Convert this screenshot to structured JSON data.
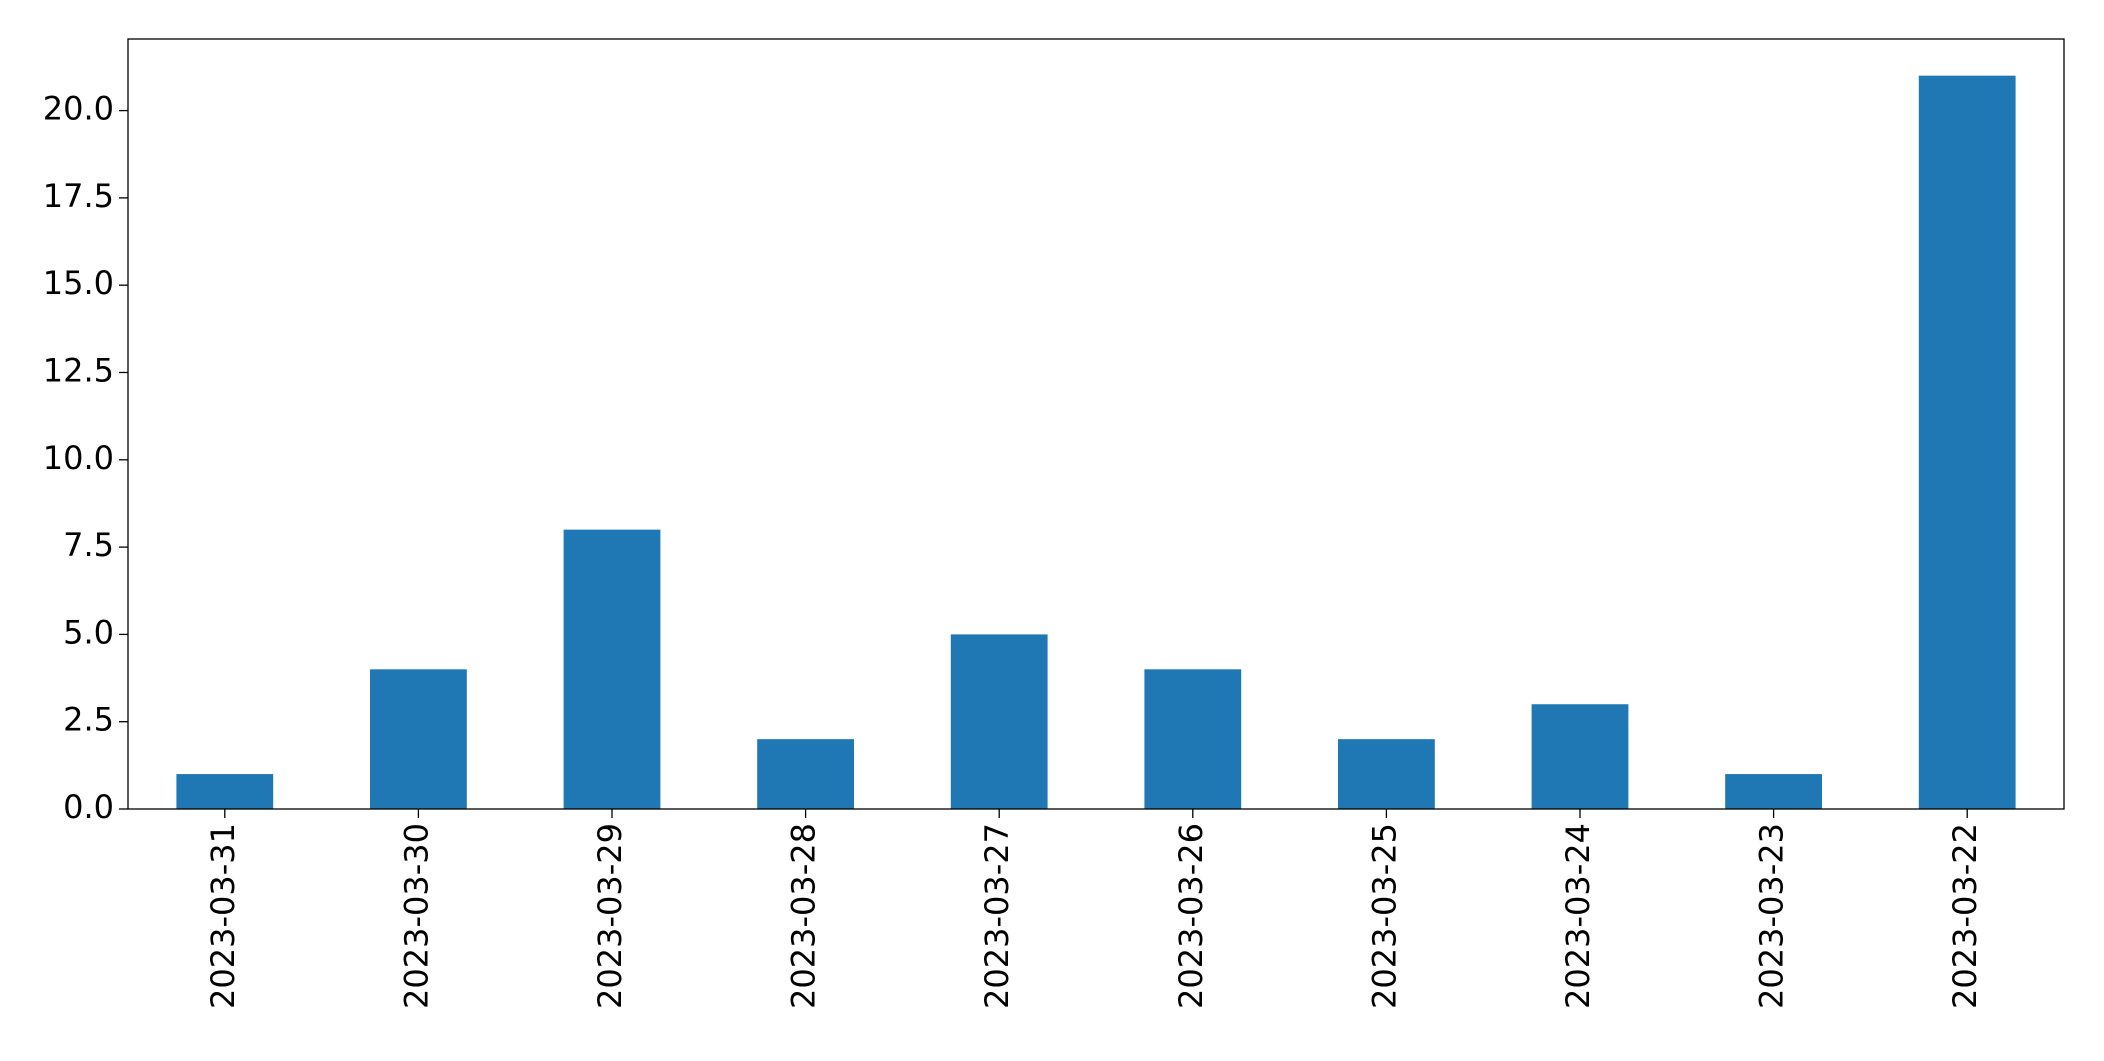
{
  "chart_data": {
    "type": "bar",
    "categories": [
      "2023-03-31",
      "2023-03-30",
      "2023-03-29",
      "2023-03-28",
      "2023-03-27",
      "2023-03-26",
      "2023-03-25",
      "2023-03-24",
      "2023-03-23",
      "2023-03-22"
    ],
    "values": [
      1,
      4,
      8,
      2,
      5,
      4,
      2,
      3,
      1,
      21
    ],
    "color": "#1f77b4",
    "ylim": [
      0,
      22.05
    ],
    "yticks": [
      {
        "value": 0,
        "label": "0.0"
      },
      2.5,
      {
        "value": 5,
        "label": "5.0"
      },
      7.5,
      {
        "value": 10,
        "label": "10.0"
      },
      12.5,
      {
        "value": 15,
        "label": "15.0"
      },
      17.5,
      {
        "value": 20,
        "label": "20.0"
      }
    ],
    "grid": false
  }
}
